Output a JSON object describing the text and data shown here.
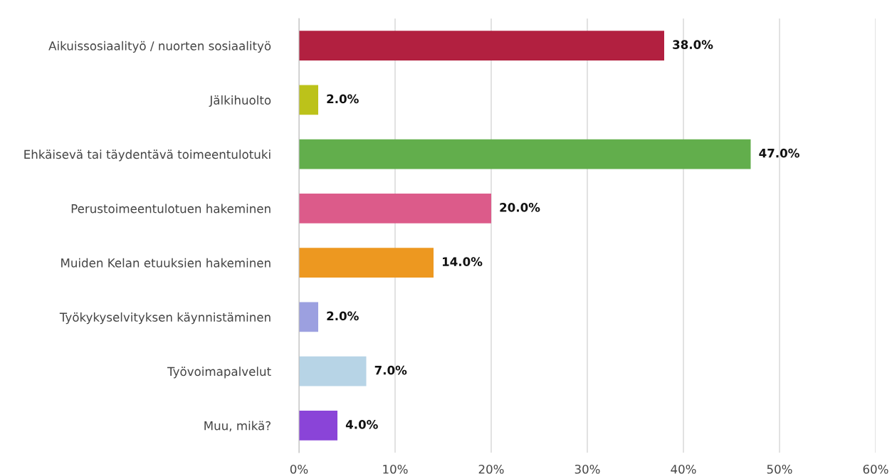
{
  "chart_data": {
    "type": "bar",
    "orientation": "horizontal",
    "categories": [
      "Aikuissosiaalityö / nuorten sosiaalityö",
      "Jälkihuolto",
      "Ehkäisevä tai täydentävä toimeentulotuki",
      "Perustoimeentulotuen hakeminen",
      "Muiden Kelan etuuksien hakeminen",
      "Työkykyselvityksen käynnistäminen",
      "Työvoimapalvelut",
      "Muu, mikä?"
    ],
    "values": [
      38.0,
      2.0,
      47.0,
      20.0,
      14.0,
      2.0,
      7.0,
      4.0
    ],
    "colors": [
      "#b22040",
      "#bcc21a",
      "#62ae4c",
      "#dc5b8a",
      "#ed9820",
      "#9ca0e0",
      "#b7d4e6",
      "#8a44d8"
    ],
    "value_labels": [
      "38.0%",
      "2.0%",
      "47.0%",
      "20.0%",
      "14.0%",
      "2.0%",
      "7.0%",
      "4.0%"
    ],
    "xlim": [
      0,
      60
    ],
    "xticks": [
      {
        "value": 0,
        "label": "0%"
      },
      {
        "value": 10,
        "label": "10%"
      },
      {
        "value": 20,
        "label": "20%"
      },
      {
        "value": 30,
        "label": "30%"
      },
      {
        "value": 40,
        "label": "40%"
      },
      {
        "value": 50,
        "label": "50%"
      },
      {
        "value": 60,
        "label": "60%"
      }
    ],
    "grid": "x",
    "legend": false
  }
}
